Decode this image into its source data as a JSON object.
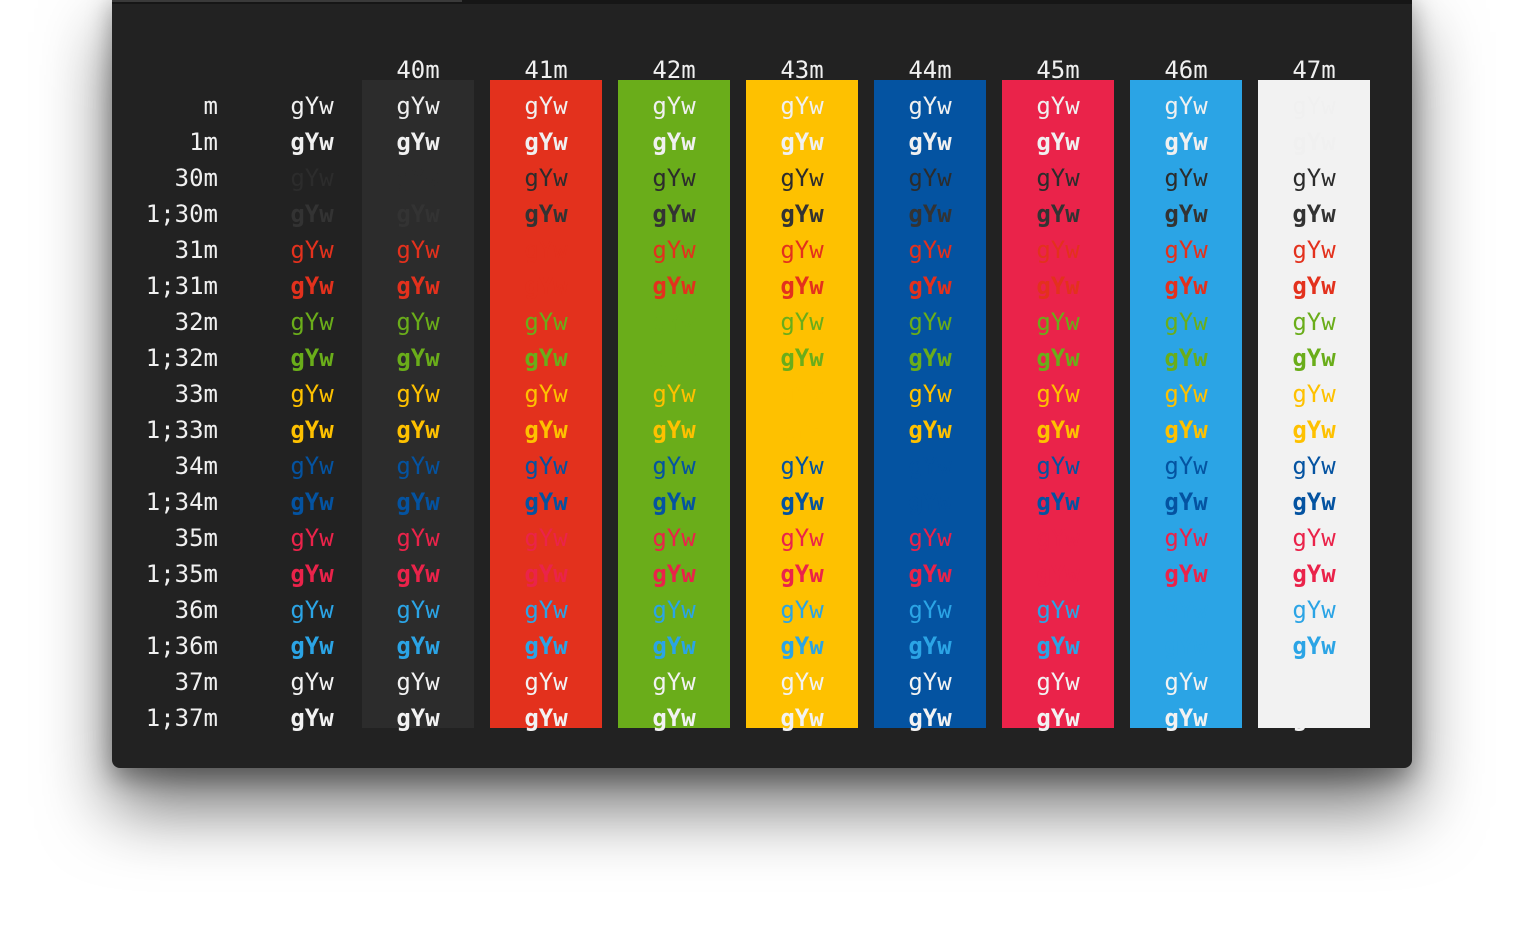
{
  "colors": {
    "terminal_background": "#222222",
    "default_fg": "#f0f0f0",
    "ansi": {
      "black": "#2c2c2c",
      "red": "#e3311d",
      "green": "#6aad1a",
      "yellow": "#fec100",
      "blue": "#0453a1",
      "magenta": "#ea234a",
      "cyan": "#2ba4e5",
      "white": "#f2f2f2"
    },
    "bright": {
      "black": "#333333",
      "red": "#e3311d",
      "green": "#6aad1a",
      "yellow": "#fec100",
      "blue": "#0453a1",
      "magenta": "#ea234a",
      "cyan": "#2ba4e5",
      "white": "#f2f2f2"
    }
  },
  "columns": [
    {
      "header": "",
      "bg": null
    },
    {
      "header": "40m",
      "bg": "black"
    },
    {
      "header": "41m",
      "bg": "red"
    },
    {
      "header": "42m",
      "bg": "green"
    },
    {
      "header": "43m",
      "bg": "yellow"
    },
    {
      "header": "44m",
      "bg": "blue"
    },
    {
      "header": "45m",
      "bg": "magenta"
    },
    {
      "header": "46m",
      "bg": "cyan"
    },
    {
      "header": "47m",
      "bg": "white"
    }
  ],
  "rows": [
    {
      "label": "m",
      "fg": "default",
      "bold": false
    },
    {
      "label": "1m",
      "fg": "default",
      "bold": true
    },
    {
      "label": "30m",
      "fg": "black",
      "bold": false
    },
    {
      "label": "1;30m",
      "fg": "black",
      "bold": true
    },
    {
      "label": "31m",
      "fg": "red",
      "bold": false
    },
    {
      "label": "1;31m",
      "fg": "red",
      "bold": true
    },
    {
      "label": "32m",
      "fg": "green",
      "bold": false
    },
    {
      "label": "1;32m",
      "fg": "green",
      "bold": true
    },
    {
      "label": "33m",
      "fg": "yellow",
      "bold": false
    },
    {
      "label": "1;33m",
      "fg": "yellow",
      "bold": true
    },
    {
      "label": "34m",
      "fg": "blue",
      "bold": false
    },
    {
      "label": "1;34m",
      "fg": "blue",
      "bold": true
    },
    {
      "label": "35m",
      "fg": "magenta",
      "bold": false
    },
    {
      "label": "1;35m",
      "fg": "magenta",
      "bold": true
    },
    {
      "label": "36m",
      "fg": "cyan",
      "bold": false
    },
    {
      "label": "1;36m",
      "fg": "cyan",
      "bold": true
    },
    {
      "label": "37m",
      "fg": "white",
      "bold": false
    },
    {
      "label": "1;37m",
      "fg": "white",
      "bold": true
    }
  ],
  "sample_text": "gYw"
}
